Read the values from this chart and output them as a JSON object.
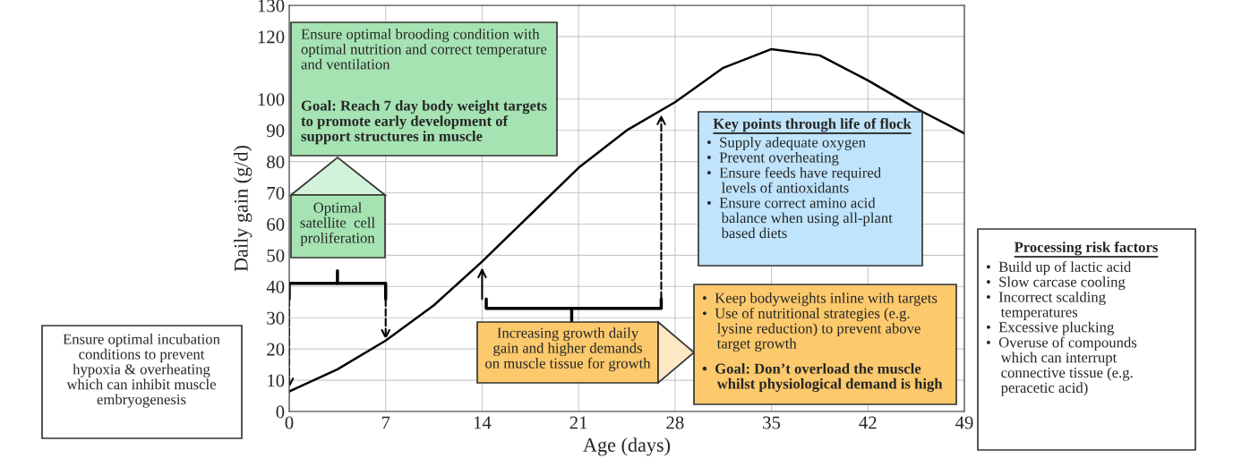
{
  "chart_data": {
    "type": "line",
    "xlabel": "Age (days)",
    "ylabel": "Daily gain (g/d)",
    "x": [
      0,
      3.5,
      7,
      10.5,
      14,
      17.5,
      21,
      24.5,
      28,
      31.5,
      35,
      38.5,
      42,
      45.5,
      49
    ],
    "series": [
      {
        "color": "#000000",
        "values": [
          6.4,
          13.5,
          22.7,
          34,
          48,
          63,
          78,
          90,
          99,
          110,
          116,
          114,
          106,
          97,
          89
        ]
      }
    ],
    "xlim": [
      0,
      49
    ],
    "xticks": [
      0,
      7,
      14,
      21,
      28,
      35,
      42,
      49
    ],
    "ylim": [
      0,
      130
    ],
    "yticks": [
      0,
      10,
      20,
      30,
      40,
      50,
      60,
      70,
      80,
      90,
      100,
      120,
      130
    ],
    "grid": true,
    "marker": "none",
    "line_style": "solid",
    "annotations": [
      "Ensure optimal brooding condition with\noptimal nutrition and correct temperature\nand ventilation",
      "Goal: Reach 7 day body weight targets\nto promote early development of\nsupport structures in muscle",
      "Optimal\nsatellite  cell\nproliferation",
      "Ensure optimal incubation\nconditions to prevent\nhypoxia & overheating\nwhich can inhibit muscle\nembryogenesis",
      "Increasing growth daily\ngain and higher demands\non muscle tissue for growth",
      "Key points through life of flock",
      "•  Supply adequate oxygen\n•  Prevent overheating\n•  Ensure feeds have required\n    levels of antioxidants\n•  Ensure correct amino acid\n    balance when using all-plant\n    based diets",
      "•  Keep bodyweights inline with targets\n•  Use of nutritional strategies (e.g.\n    lysine reduction) to prevent above\n    target growth",
      "•  Goal: Don’t overload the muscle\n    whilst physiological demand is high",
      "Processing risk factors",
      "•  Build up of lactic acid\n•  Slow carcase cooling\n•  Incorrect scalding\n    temperatures\n•  Excessive plucking\n•  Overuse of compounds\n    which can interrupt\n    connective tissue (e.g.\n    peracetic acid)"
    ]
  }
}
